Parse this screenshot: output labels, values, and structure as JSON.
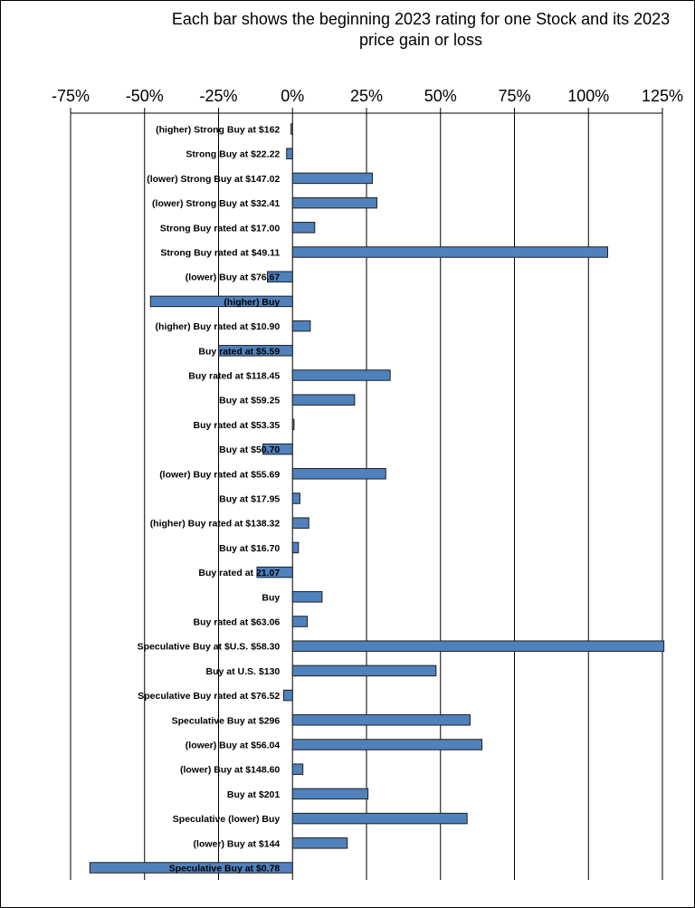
{
  "chart_data": {
    "type": "bar",
    "orientation": "horizontal",
    "title": "Each bar shows the beginning  2023 rating for one Stock and its 2023 price gain or loss",
    "title_lines": [
      "Each bar shows the beginning  2023 rating for one Stock and its 2023",
      "price gain or loss"
    ],
    "xlabel": "",
    "ylabel": "",
    "xlim": [
      -75,
      125
    ],
    "x_ticks": [
      -75,
      -50,
      -25,
      0,
      25,
      50,
      75,
      100,
      125
    ],
    "x_tick_labels": [
      "-75%",
      "-50%",
      "-25%",
      "0%",
      "25%",
      "50%",
      "75%",
      "100%",
      "125%"
    ],
    "x_axis_position": "top",
    "grid": "vertical",
    "legend": "none",
    "bar_color": "#4F81BD",
    "bar_edge_color": "#1F1F1F",
    "categories": [
      "(higher) Strong Buy at $162",
      "Strong Buy at $22.22",
      "(lower) Strong Buy at $147.02",
      "(lower) Strong Buy at $32.41",
      "Strong Buy rated at $17.00",
      "Strong Buy rated at $49.11",
      "(lower) Buy at $76.67",
      "(higher) Buy",
      "(higher) Buy rated at $10.90",
      "Buy rated at $5.59",
      "Buy rated at $118.45",
      "Buy at $59.25",
      "Buy rated at $53.35",
      "Buy at $50.70",
      "(lower) Buy rated at $55.69",
      "Buy at $17.95",
      "(higher) Buy rated at $138.32",
      "Buy at $16.70",
      "Buy rated at 21.07",
      "Buy",
      "Buy rated at $63.06",
      "Speculative Buy at $U.S. $58.30",
      "Buy at U.S. $130",
      "Speculative Buy rated at $76.52",
      "Speculative Buy at $296",
      "(lower) Buy at $56.04",
      "(lower) Buy at $148.60",
      "Buy at $201",
      "Speculative (lower) Buy",
      "(lower) Buy at $144",
      "Speculative Buy at $0.78"
    ],
    "values": [
      -0.5,
      -2,
      27,
      28.5,
      7.5,
      106.5,
      -8.5,
      -48,
      6,
      -25,
      33,
      21,
      0.5,
      -10,
      31.5,
      2.5,
      5.5,
      2,
      -12,
      10,
      5,
      125.5,
      48.5,
      -3,
      60,
      64,
      3.5,
      25.5,
      59,
      18.5,
      -68.5
    ]
  }
}
